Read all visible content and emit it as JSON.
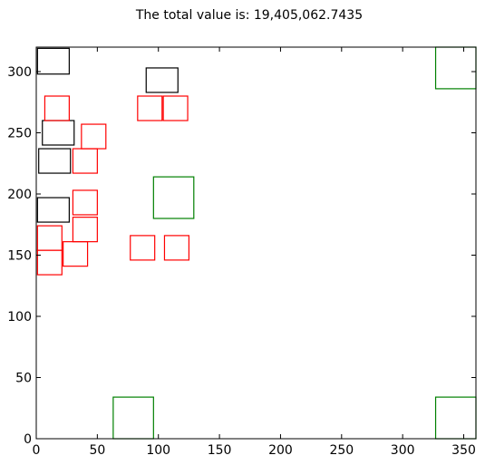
{
  "chart_data": {
    "type": "scatter",
    "title": "The total value is: 19,405,062.7435",
    "xlabel": "",
    "ylabel": "",
    "xlim": [
      0,
      360
    ],
    "ylim": [
      0,
      320
    ],
    "xticks": [
      0,
      50,
      100,
      150,
      200,
      250,
      300,
      350
    ],
    "yticks": [
      0,
      50,
      100,
      150,
      200,
      250,
      300
    ],
    "grid": false,
    "rectangles": [
      {
        "color": "#000000",
        "x": 1,
        "y": 298,
        "w": 26,
        "h": 21
      },
      {
        "color": "#000000",
        "x": 90,
        "y": 283,
        "w": 26,
        "h": 20
      },
      {
        "color": "#000000",
        "x": 5,
        "y": 240,
        "w": 26,
        "h": 20
      },
      {
        "color": "#000000",
        "x": 2,
        "y": 217,
        "w": 26,
        "h": 20
      },
      {
        "color": "#000000",
        "x": 1,
        "y": 177,
        "w": 26,
        "h": 20
      },
      {
        "color": "#ff0000",
        "x": 7,
        "y": 260,
        "w": 20,
        "h": 20
      },
      {
        "color": "#ff0000",
        "x": 83,
        "y": 260,
        "w": 20,
        "h": 20
      },
      {
        "color": "#ff0000",
        "x": 104,
        "y": 260,
        "w": 20,
        "h": 20
      },
      {
        "color": "#ff0000",
        "x": 37,
        "y": 237,
        "w": 20,
        "h": 20
      },
      {
        "color": "#ff0000",
        "x": 30,
        "y": 217,
        "w": 20,
        "h": 20
      },
      {
        "color": "#ff0000",
        "x": 30,
        "y": 183,
        "w": 20,
        "h": 20
      },
      {
        "color": "#ff0000",
        "x": 30,
        "y": 161,
        "w": 20,
        "h": 20
      },
      {
        "color": "#ff0000",
        "x": 1,
        "y": 154,
        "w": 20,
        "h": 20
      },
      {
        "color": "#ff0000",
        "x": 77,
        "y": 146,
        "w": 20,
        "h": 20
      },
      {
        "color": "#ff0000",
        "x": 105,
        "y": 146,
        "w": 20,
        "h": 20
      },
      {
        "color": "#ff0000",
        "x": 22,
        "y": 141,
        "w": 20,
        "h": 20
      },
      {
        "color": "#ff0000",
        "x": 1,
        "y": 134,
        "w": 20,
        "h": 20
      },
      {
        "color": "#008000",
        "x": 96,
        "y": 180,
        "w": 33,
        "h": 34
      },
      {
        "color": "#008000",
        "x": 327,
        "y": 286,
        "w": 33,
        "h": 34
      },
      {
        "color": "#008000",
        "x": 63,
        "y": 0,
        "w": 33,
        "h": 34
      },
      {
        "color": "#008000",
        "x": 327,
        "y": 0,
        "w": 33,
        "h": 34
      }
    ]
  }
}
